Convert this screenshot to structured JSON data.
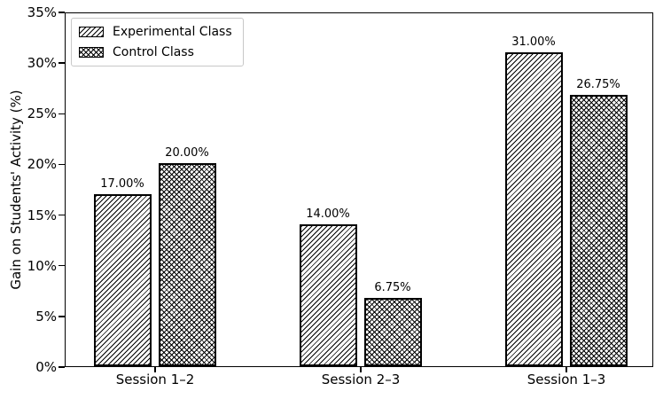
{
  "chart_data": {
    "type": "bar",
    "title": "",
    "xlabel": "",
    "ylabel": "Gain on Students' Activity (%)",
    "categories": [
      "Session 1–2",
      "Session 2–3",
      "Session 1–3"
    ],
    "series": [
      {
        "name": "Experimental Class",
        "hatch": "diagonal",
        "values": [
          17.0,
          14.0,
          31.0
        ],
        "value_labels": [
          "17.00%",
          "14.00%",
          "31.00%"
        ]
      },
      {
        "name": "Control Class",
        "hatch": "cross",
        "values": [
          20.0,
          6.75,
          26.75
        ],
        "value_labels": [
          "20.00%",
          "6.75%",
          "26.75%"
        ]
      }
    ],
    "ylim": [
      0,
      35
    ],
    "yticks": [
      {
        "value": 0,
        "label": "0%"
      },
      {
        "value": 5,
        "label": "5%"
      },
      {
        "value": 10,
        "label": "10%"
      },
      {
        "value": 15,
        "label": "15%"
      },
      {
        "value": 20,
        "label": "20%"
      },
      {
        "value": 25,
        "label": "25%"
      },
      {
        "value": 30,
        "label": "30%"
      },
      {
        "value": 35,
        "label": "35%"
      }
    ],
    "legend_position": "upper left",
    "grid": false,
    "colors": {
      "bar_fill": "#ffffff",
      "bar_edge": "#000000",
      "hatch": "#000000",
      "text": "#000000",
      "legend_border": "#c8c8c8",
      "background": "#ffffff"
    }
  }
}
